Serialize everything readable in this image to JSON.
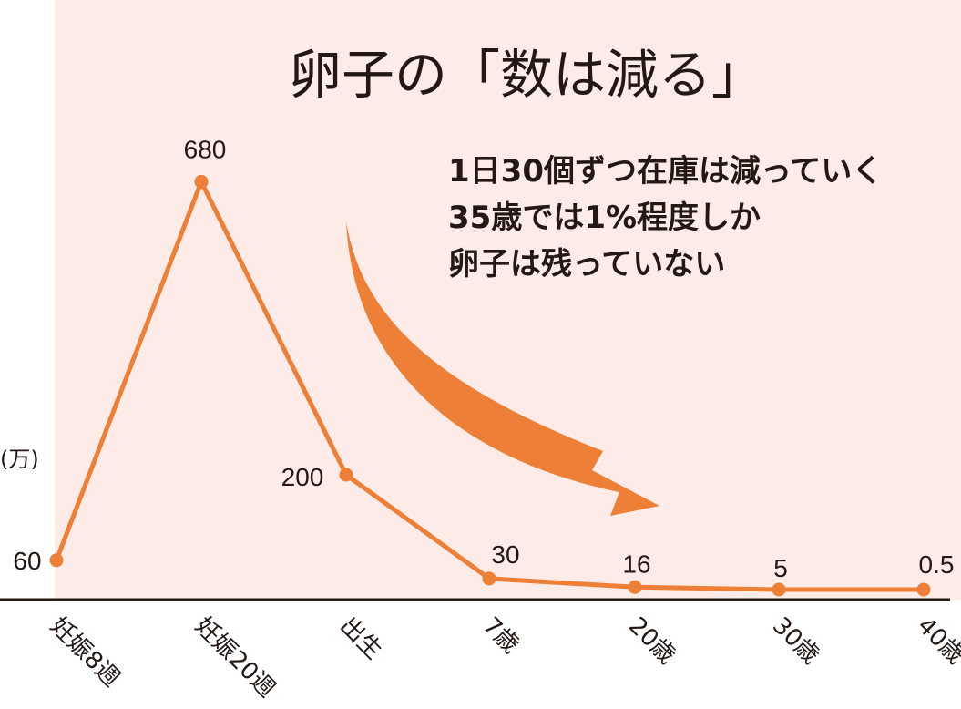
{
  "colors": {
    "background_panel": "#fcebe6",
    "line": "#ee7f37",
    "arrow": "#ee7f37",
    "axis": "#231815",
    "text": "#231815"
  },
  "chart_data": {
    "type": "line",
    "title": "卵子の「数は減る」",
    "unit_label": "(万)",
    "categories": [
      "妊娠8週",
      "妊娠20週",
      "出生",
      "7歳",
      "20歳",
      "30歳",
      "40歳"
    ],
    "series": [
      {
        "values": [
          60,
          680,
          200,
          30,
          16,
          5,
          0.5
        ],
        "value_labels": [
          "60",
          "680",
          "200",
          "30",
          "16",
          "5",
          "0.5"
        ]
      }
    ],
    "annotations": [
      "1日30個ずつ在庫は減っていく",
      "35歳では1%程度しか",
      "卵子は残っていない"
    ],
    "ylim": [
      0,
      680
    ],
    "grid": false,
    "legend": "none"
  }
}
